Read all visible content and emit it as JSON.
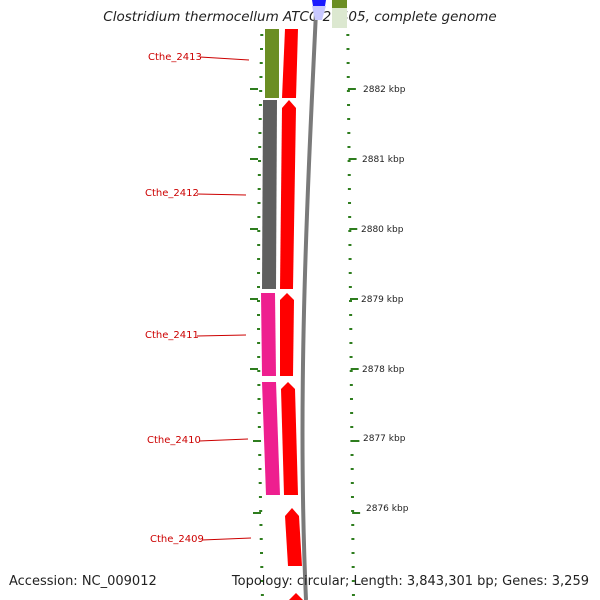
{
  "title": "Clostridium thermocellum ATCC 27405, complete genome",
  "footer": {
    "accession": "Accession: NC_009012",
    "stats": "Topology: circular; Length: 3,843,301 bp; Genes: 3,259"
  },
  "colors": {
    "cds_red": "#ff0000",
    "gene_label_red": "#cc0000",
    "tick_green": "#2e7d1e",
    "olive": "#6b8e23",
    "dark_gray": "#5f5f5f",
    "magenta": "#ee1f8f",
    "blue": "#1a1aff",
    "backbone_gray": "#7a7a7a"
  },
  "genes": [
    {
      "label": "Cthe_2413",
      "color_key": "olive",
      "feature_color": "#6b8e23",
      "name_icon": "olive-gene-bar"
    },
    {
      "label": "Cthe_2412",
      "color_key": "dark_gray",
      "feature_color": "#5f5f5f",
      "name_icon": "gray-gene-bar"
    },
    {
      "label": "Cthe_2411",
      "color_key": "magenta",
      "feature_color": "#ee1f8f",
      "name_icon": "magenta-gene-bar"
    },
    {
      "label": "Cthe_2410",
      "color_key": "magenta",
      "feature_color": "#ee1f8f",
      "name_icon": "magenta-gene-bar"
    },
    {
      "label": "Cthe_2409",
      "color_key": "none",
      "feature_color": "",
      "name_icon": ""
    }
  ],
  "scale_labels": [
    "2882 kbp",
    "2881 kbp",
    "2880 kbp",
    "2879 kbp",
    "2878 kbp",
    "2877 kbp",
    "2876 kbp"
  ]
}
